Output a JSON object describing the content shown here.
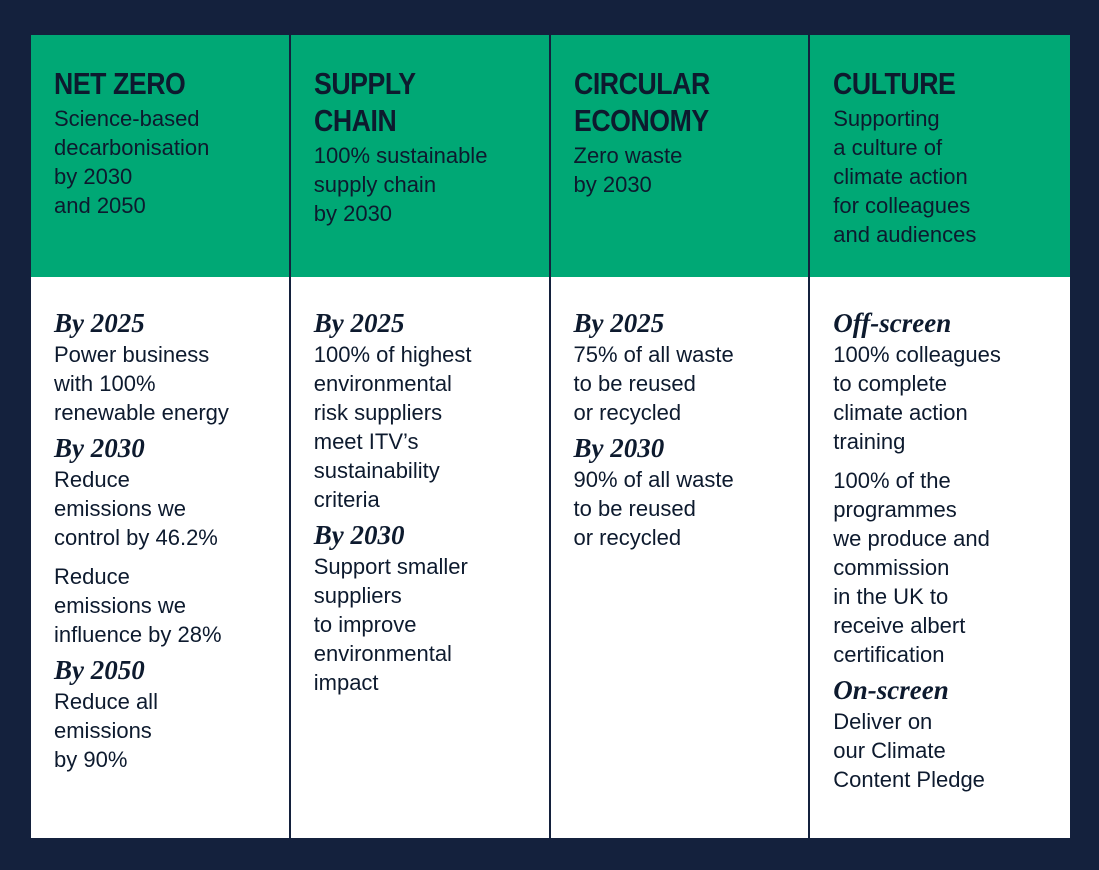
{
  "columns": [
    {
      "title": "NET ZERO",
      "subtitle": "Science-based\ndecarbonisation\nby 2030\nand 2050",
      "sections": [
        {
          "label": "By 2025",
          "items": [
            "Power business\nwith 100%\nrenewable energy"
          ]
        },
        {
          "label": "By 2030",
          "items": [
            "Reduce\nemissions we\ncontrol by 46.2%",
            "Reduce\nemissions we\ninfluence by 28%"
          ]
        },
        {
          "label": "By 2050",
          "items": [
            "Reduce all\nemissions\nby 90%"
          ]
        }
      ]
    },
    {
      "title": "SUPPLY\nCHAIN",
      "subtitle": "100% sustainable\nsupply chain\nby 2030",
      "sections": [
        {
          "label": "By 2025",
          "items": [
            "100% of highest\nenvironmental\nrisk suppliers\nmeet ITV’s\nsustainability\ncriteria"
          ]
        },
        {
          "label": "By 2030",
          "items": [
            "Support smaller\nsuppliers\nto improve\nenvironmental\nimpact"
          ]
        }
      ]
    },
    {
      "title": "CIRCULAR\nECONOMY",
      "subtitle": "Zero waste\nby 2030",
      "sections": [
        {
          "label": "By 2025",
          "items": [
            "75% of all waste\nto be reused\nor recycled"
          ]
        },
        {
          "label": "By 2030",
          "items": [
            "90% of all waste\nto be reused\nor recycled"
          ]
        }
      ]
    },
    {
      "title": "CULTURE",
      "subtitle": "Supporting\na culture of\nclimate action\nfor colleagues\nand audiences",
      "sections": [
        {
          "label": "Off-screen",
          "items": [
            "100% colleagues\nto complete\nclimate action\ntraining",
            "100% of the\nprogrammes\nwe produce and\ncommission\nin the UK to\nreceive albert\ncertification"
          ]
        },
        {
          "label": "On-screen",
          "items": [
            "Deliver on\nour Climate\nContent Pledge"
          ]
        }
      ]
    }
  ]
}
